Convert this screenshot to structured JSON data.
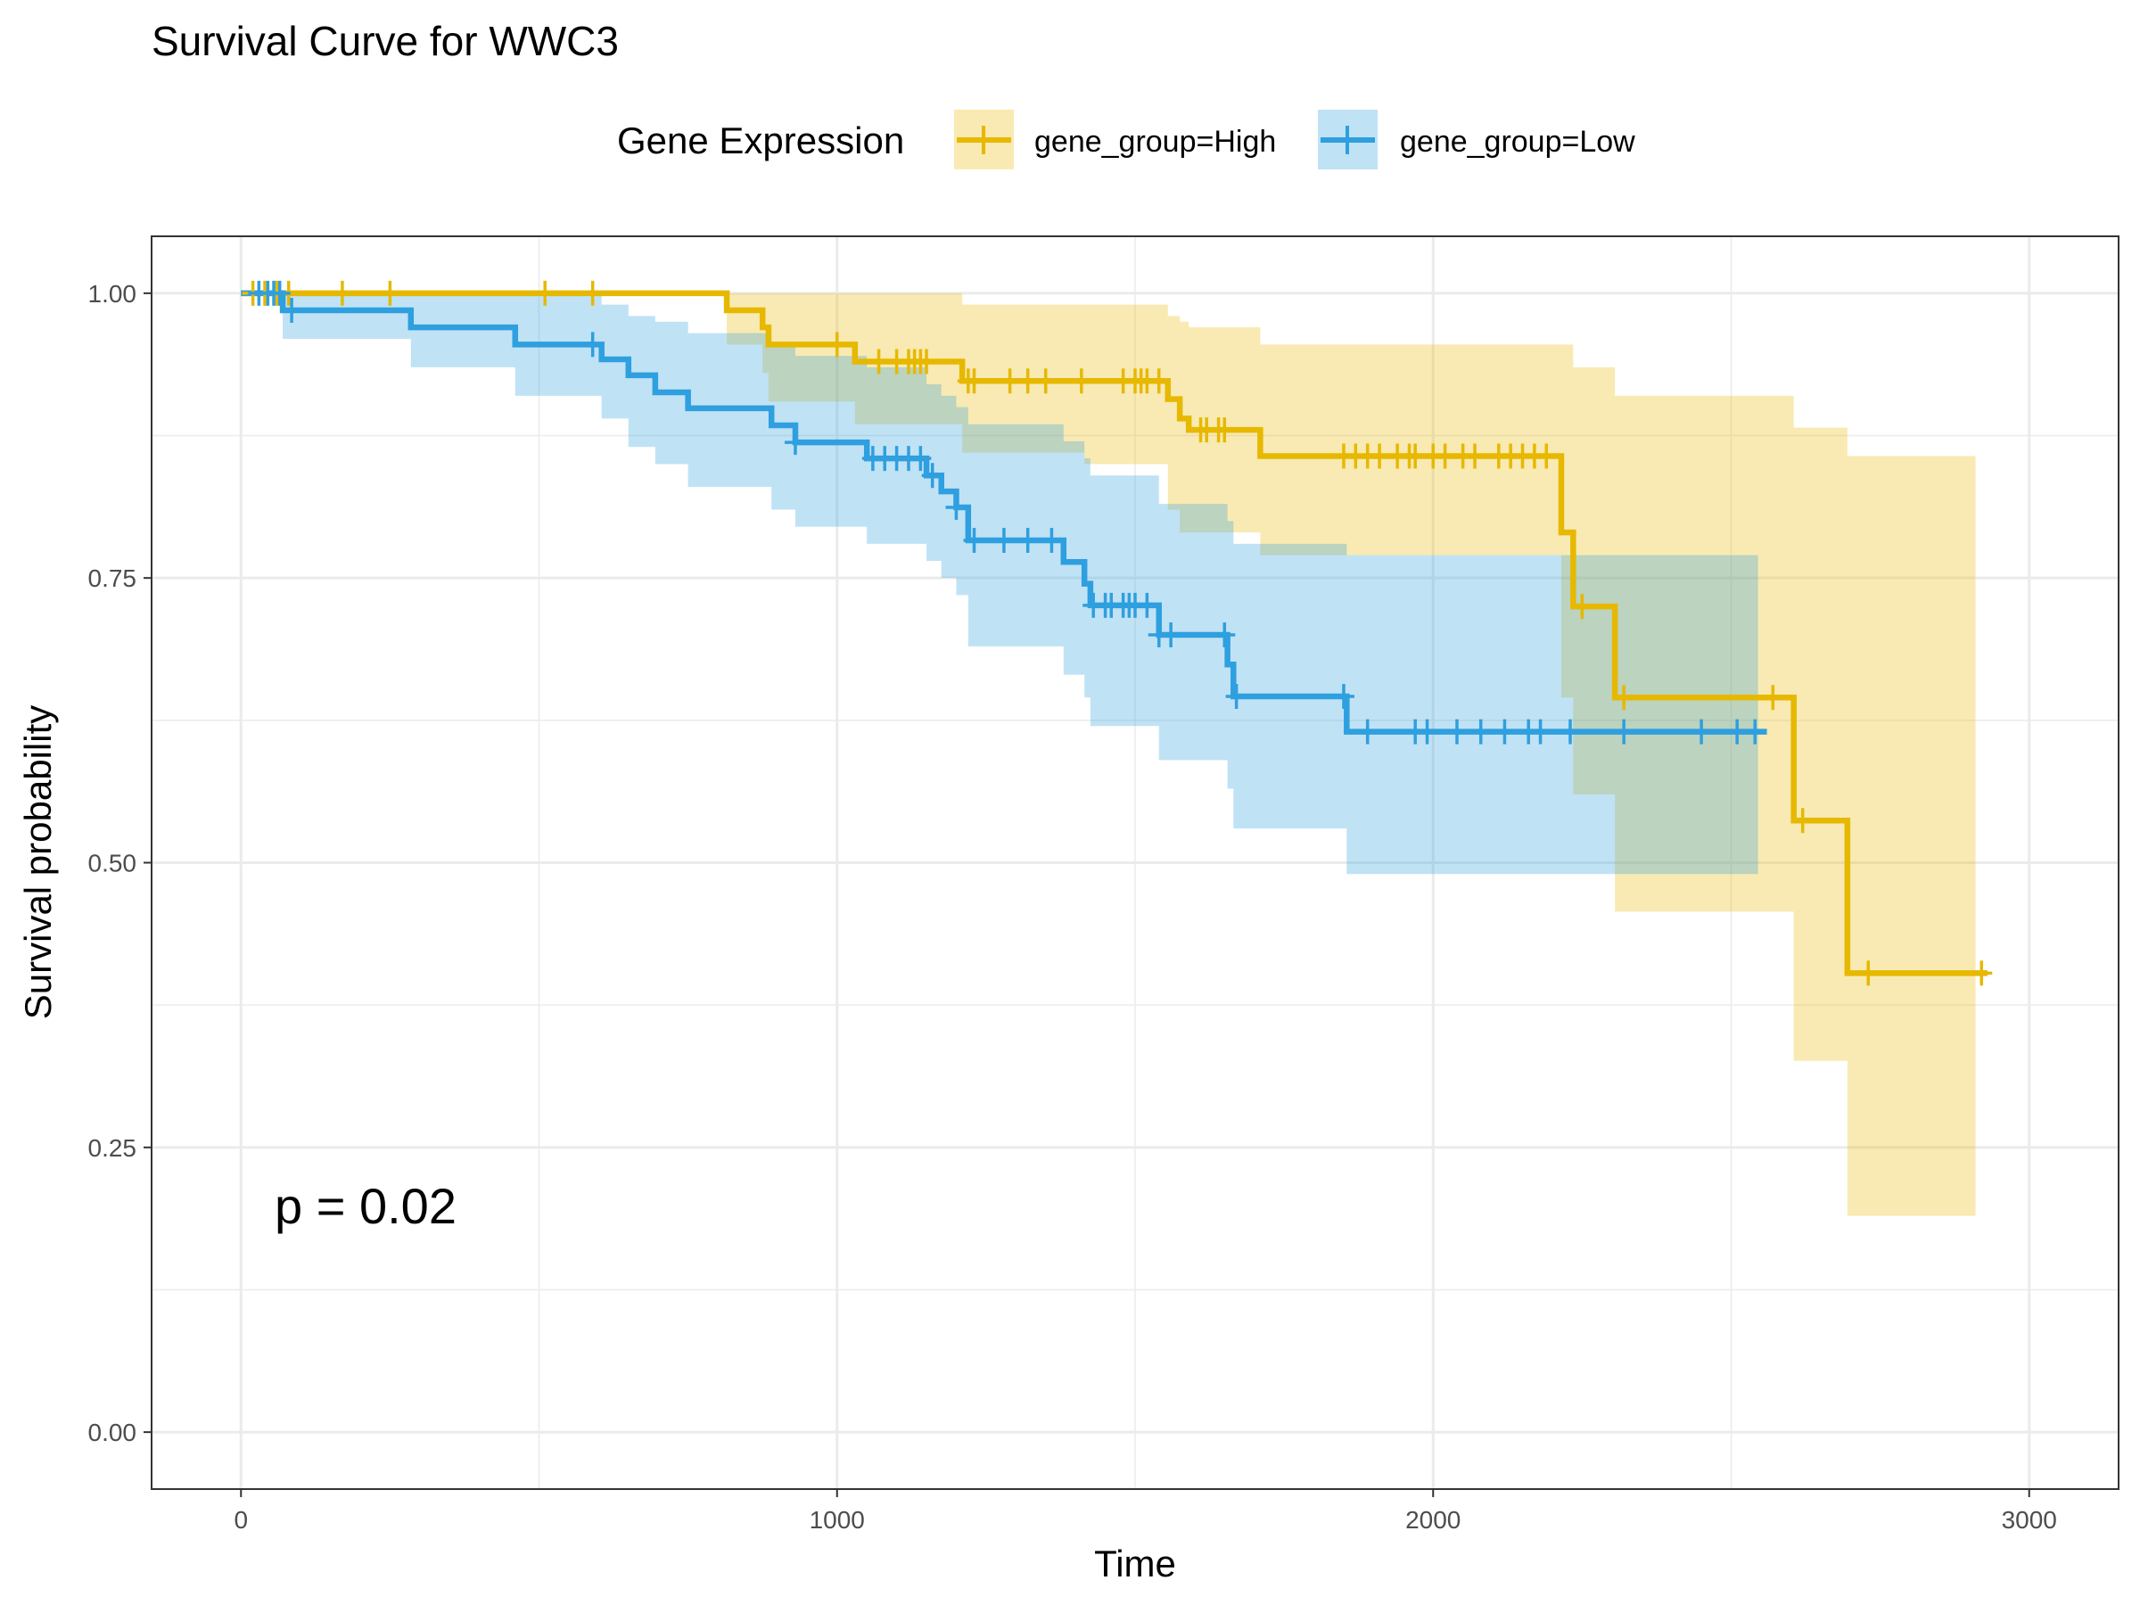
{
  "chart_data": {
    "type": "line",
    "title": "Survival Curve for WWC3",
    "xlabel": "Time",
    "ylabel": "Survival probability",
    "xlim": [
      -150,
      3150
    ],
    "ylim": [
      -0.05,
      1.05
    ],
    "x_ticks": [
      0,
      1000,
      2000,
      3000
    ],
    "x_tick_labels": [
      "0",
      "1000",
      "2000",
      "3000"
    ],
    "y_ticks": [
      0,
      0.25,
      0.5,
      0.75,
      1.0
    ],
    "y_tick_labels": [
      "0.00",
      "0.25",
      "0.50",
      "0.75",
      "1.00"
    ],
    "grid": true,
    "legend": {
      "title": "Gene Expression",
      "position": "top",
      "entries": [
        "gene_group=High",
        "gene_group=Low"
      ]
    },
    "annotation": "p = 0.02",
    "series": [
      {
        "name": "gene_group=High",
        "color": "#E7B800",
        "steps": [
          [
            0,
            1.0
          ],
          [
            815,
            0.985
          ],
          [
            875,
            0.97
          ],
          [
            885,
            0.955
          ],
          [
            1030,
            0.94
          ],
          [
            1210,
            0.923
          ],
          [
            1555,
            0.907
          ],
          [
            1575,
            0.89
          ],
          [
            1590,
            0.88
          ],
          [
            1710,
            0.857
          ],
          [
            2215,
            0.79
          ],
          [
            2235,
            0.725
          ],
          [
            2305,
            0.645
          ],
          [
            2605,
            0.537
          ],
          [
            2695,
            0.403
          ],
          [
            2930,
            0.403
          ]
        ],
        "ci": [
          [
            0,
            1.0,
            1.0
          ],
          [
            815,
            0.955,
            1.0
          ],
          [
            875,
            0.93,
            1.0
          ],
          [
            885,
            0.905,
            1.0
          ],
          [
            1030,
            0.885,
            1.0
          ],
          [
            1210,
            0.86,
            0.99
          ],
          [
            1415,
            0.85,
            0.99
          ],
          [
            1555,
            0.81,
            0.98
          ],
          [
            1575,
            0.79,
            0.975
          ],
          [
            1590,
            0.79,
            0.97
          ],
          [
            1710,
            0.77,
            0.955
          ],
          [
            1850,
            0.77,
            0.955
          ],
          [
            2215,
            0.645,
            0.955
          ],
          [
            2235,
            0.56,
            0.935
          ],
          [
            2305,
            0.457,
            0.91
          ],
          [
            2605,
            0.326,
            0.882
          ],
          [
            2695,
            0.19,
            0.857
          ],
          [
            2910,
            0.19,
            0.857
          ]
        ],
        "censor": [
          20,
          40,
          60,
          80,
          170,
          250,
          510,
          590,
          1000,
          1070,
          1100,
          1120,
          1130,
          1140,
          1150,
          1220,
          1230,
          1290,
          1320,
          1350,
          1410,
          1480,
          1500,
          1510,
          1520,
          1540,
          1610,
          1620,
          1640,
          1650,
          1850,
          1870,
          1890,
          1910,
          1940,
          1960,
          1970,
          2000,
          2020,
          2050,
          2070,
          2110,
          2130,
          2150,
          2170,
          2190,
          2250,
          2320,
          2570,
          2620,
          2730,
          2920
        ]
      },
      {
        "name": "gene_group=Low",
        "color": "#2E9FDF",
        "steps": [
          [
            0,
            1.0
          ],
          [
            70,
            0.985
          ],
          [
            285,
            0.97
          ],
          [
            460,
            0.955
          ],
          [
            605,
            0.942
          ],
          [
            650,
            0.928
          ],
          [
            695,
            0.913
          ],
          [
            750,
            0.899
          ],
          [
            890,
            0.884
          ],
          [
            930,
            0.869
          ],
          [
            1050,
            0.855
          ],
          [
            1150,
            0.84
          ],
          [
            1175,
            0.826
          ],
          [
            1200,
            0.812
          ],
          [
            1220,
            0.783
          ],
          [
            1380,
            0.764
          ],
          [
            1415,
            0.745
          ],
          [
            1425,
            0.726
          ],
          [
            1540,
            0.7
          ],
          [
            1655,
            0.674
          ],
          [
            1665,
            0.646
          ],
          [
            1855,
            0.615
          ],
          [
            2560,
            0.615
          ]
        ],
        "ci": [
          [
            0,
            1.0,
            1.0
          ],
          [
            70,
            0.96,
            1.0
          ],
          [
            285,
            0.935,
            1.0
          ],
          [
            460,
            0.91,
            1.0
          ],
          [
            605,
            0.89,
            0.99
          ],
          [
            650,
            0.865,
            0.98
          ],
          [
            695,
            0.85,
            0.975
          ],
          [
            750,
            0.83,
            0.965
          ],
          [
            890,
            0.81,
            0.955
          ],
          [
            930,
            0.795,
            0.945
          ],
          [
            1050,
            0.78,
            0.935
          ],
          [
            1150,
            0.765,
            0.92
          ],
          [
            1175,
            0.75,
            0.91
          ],
          [
            1200,
            0.735,
            0.9
          ],
          [
            1220,
            0.69,
            0.885
          ],
          [
            1380,
            0.665,
            0.87
          ],
          [
            1415,
            0.645,
            0.855
          ],
          [
            1425,
            0.62,
            0.84
          ],
          [
            1540,
            0.59,
            0.815
          ],
          [
            1655,
            0.565,
            0.8
          ],
          [
            1665,
            0.53,
            0.78
          ],
          [
            1855,
            0.49,
            0.77
          ],
          [
            2545,
            0.49,
            0.77
          ]
        ],
        "censor": [
          30,
          45,
          55,
          65,
          85,
          590,
          930,
          1060,
          1080,
          1100,
          1120,
          1140,
          1160,
          1200,
          1230,
          1280,
          1320,
          1360,
          1430,
          1450,
          1460,
          1480,
          1490,
          1500,
          1520,
          1540,
          1560,
          1650,
          1670,
          1850,
          1890,
          1970,
          1990,
          2040,
          2080,
          2120,
          2160,
          2180,
          2230,
          2320,
          2450,
          2510,
          2540
        ]
      }
    ]
  }
}
